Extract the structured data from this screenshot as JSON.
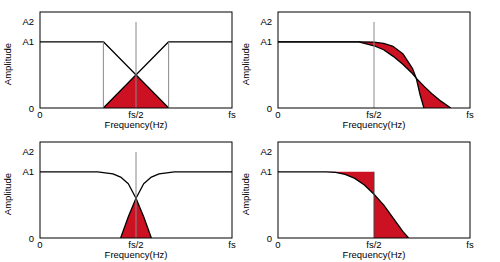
{
  "chart_data": [
    {
      "type": "line",
      "xlabel": "Frequency(Hz)",
      "ylabel": "Amplitude",
      "xlim": [
        0,
        1
      ],
      "ylim": [
        0,
        1.45
      ],
      "xticks": [
        0,
        {
          "value": 0.5,
          "label": "fs/2"
        },
        {
          "value": 1,
          "label": "fs"
        }
      ],
      "yticks": [
        0,
        {
          "value": 1,
          "label": "A1"
        },
        {
          "value": 1.3,
          "label": "A2"
        }
      ],
      "series": [
        {
          "type": "band",
          "color": "#cc1122",
          "x": [
            0.33,
            0.5,
            0.67
          ],
          "values": [
            0,
            0.5,
            0
          ],
          "base": [
            0,
            0,
            0
          ]
        },
        {
          "type": "line",
          "color": "#000000",
          "x": [
            0,
            0.33,
            0.67
          ],
          "values": [
            1,
            1,
            0
          ]
        },
        {
          "type": "line",
          "color": "#000000",
          "x": [
            0.33,
            0.67,
            1
          ],
          "values": [
            0,
            1,
            1
          ]
        }
      ],
      "vlines": [
        {
          "x": 0.33,
          "y": [
            0,
            1
          ],
          "color": "#888888"
        },
        {
          "x": 0.67,
          "y": [
            0,
            1
          ],
          "color": "#888888"
        },
        {
          "x": 0.5,
          "y": [
            0,
            1.3
          ],
          "color": "#888888"
        }
      ]
    },
    {
      "type": "line",
      "xlabel": "Frequency(Hz)",
      "ylabel": "Amplitude",
      "xlim": [
        0,
        1
      ],
      "ylim": [
        0,
        1.45
      ],
      "xticks": [
        0,
        {
          "value": 0.5,
          "label": "fs/2"
        },
        {
          "value": 1,
          "label": "fs"
        }
      ],
      "yticks": [
        0,
        {
          "value": 1,
          "label": "A1"
        },
        {
          "value": 1.3,
          "label": "A2"
        }
      ],
      "series": [
        {
          "type": "band",
          "color": "#cc1122",
          "x": [
            0.42,
            0.5,
            0.55,
            0.6,
            0.65,
            0.7,
            0.72
          ],
          "values": [
            1,
            0.995,
            0.975,
            0.93,
            0.82,
            0.6,
            0.45
          ],
          "base": [
            1,
            0.94,
            0.88,
            0.78,
            0.66,
            0.52,
            0.45
          ]
        },
        {
          "type": "band",
          "color": "#cc1122",
          "x": [
            0.72,
            0.74,
            0.76,
            0.8,
            0.85,
            0.9
          ],
          "values": [
            0.45,
            0.39,
            0.33,
            0.22,
            0.1,
            0
          ],
          "base": [
            0.45,
            0.2,
            0,
            0,
            0,
            0
          ]
        },
        {
          "type": "line",
          "color": "#000000",
          "x": [
            0,
            0.42,
            0.5,
            0.55,
            0.6,
            0.65,
            0.7,
            0.72,
            0.76,
            0.8,
            0.85,
            0.9
          ],
          "values": [
            1,
            1,
            0.94,
            0.88,
            0.78,
            0.66,
            0.52,
            0.45,
            0.33,
            0.22,
            0.1,
            0
          ]
        },
        {
          "type": "line",
          "color": "#000000",
          "x": [
            0,
            0.42,
            0.5,
            0.55,
            0.6,
            0.65,
            0.7,
            0.72,
            0.74,
            0.76
          ],
          "values": [
            1,
            1,
            0.995,
            0.975,
            0.93,
            0.82,
            0.6,
            0.45,
            0.2,
            0
          ]
        }
      ],
      "vlines": [
        {
          "x": 0.5,
          "y": [
            0,
            1.3
          ],
          "color": "#888888"
        }
      ]
    },
    {
      "type": "line",
      "xlabel": "Frequency(Hz)",
      "ylabel": "Amplitude",
      "xlim": [
        0,
        1
      ],
      "ylim": [
        0,
        1.45
      ],
      "xticks": [
        0,
        {
          "value": 0.5,
          "label": "fs/2"
        },
        {
          "value": 1,
          "label": "fs"
        }
      ],
      "yticks": [
        0,
        {
          "value": 1,
          "label": "A1"
        },
        {
          "value": 1.3,
          "label": "A2"
        }
      ],
      "series": [
        {
          "type": "band",
          "color": "#cc1122",
          "x": [
            0.42,
            0.46,
            0.5,
            0.54,
            0.58
          ],
          "values": [
            0,
            0.32,
            0.6,
            0.32,
            0
          ],
          "base": [
            0,
            0,
            0,
            0,
            0
          ]
        },
        {
          "type": "line",
          "color": "#000000",
          "x": [
            0,
            0.3,
            0.38,
            0.42,
            0.46,
            0.5,
            0.54,
            0.58
          ],
          "values": [
            1,
            1,
            0.97,
            0.92,
            0.82,
            0.6,
            0.32,
            0
          ]
        },
        {
          "type": "line",
          "color": "#000000",
          "x": [
            0.42,
            0.46,
            0.5,
            0.54,
            0.58,
            0.62,
            0.7,
            1
          ],
          "values": [
            0,
            0.32,
            0.6,
            0.82,
            0.92,
            0.97,
            1,
            1
          ]
        }
      ],
      "vlines": [
        {
          "x": 0.5,
          "y": [
            0,
            1.3
          ],
          "color": "#888888"
        }
      ]
    },
    {
      "type": "line",
      "xlabel": "Frequency(Hz)",
      "ylabel": "Amplitude",
      "xlim": [
        0,
        1
      ],
      "ylim": [
        0,
        1.45
      ],
      "xticks": [
        0,
        {
          "value": 0.5,
          "label": "fs/2"
        },
        {
          "value": 1,
          "label": "fs"
        }
      ],
      "yticks": [
        0,
        {
          "value": 1,
          "label": "A1"
        },
        {
          "value": 1.3,
          "label": "A2"
        }
      ],
      "series": [
        {
          "type": "band",
          "color": "#cc1122",
          "x": [
            0.25,
            0.3,
            0.35,
            0.4,
            0.45,
            0.5
          ],
          "values": [
            1,
            1,
            1,
            1,
            1,
            1
          ],
          "base": [
            1,
            0.99,
            0.96,
            0.9,
            0.8,
            0.66
          ]
        },
        {
          "type": "band",
          "color": "#cc1122",
          "x": [
            0.5,
            0.55,
            0.6,
            0.65,
            0.68
          ],
          "values": [
            0.66,
            0.5,
            0.3,
            0.1,
            0
          ],
          "base": [
            0,
            0,
            0,
            0,
            0
          ]
        },
        {
          "type": "line",
          "color": "#000000",
          "x": [
            0,
            0.25,
            0.3,
            0.35,
            0.4,
            0.45,
            0.5,
            0.55,
            0.6,
            0.65,
            0.68
          ],
          "values": [
            1,
            1,
            0.99,
            0.96,
            0.9,
            0.8,
            0.66,
            0.5,
            0.3,
            0.1,
            0
          ]
        }
      ],
      "vlines": [
        {
          "x": 0.5,
          "y": [
            0,
            1
          ],
          "color": "#444444"
        }
      ]
    }
  ]
}
